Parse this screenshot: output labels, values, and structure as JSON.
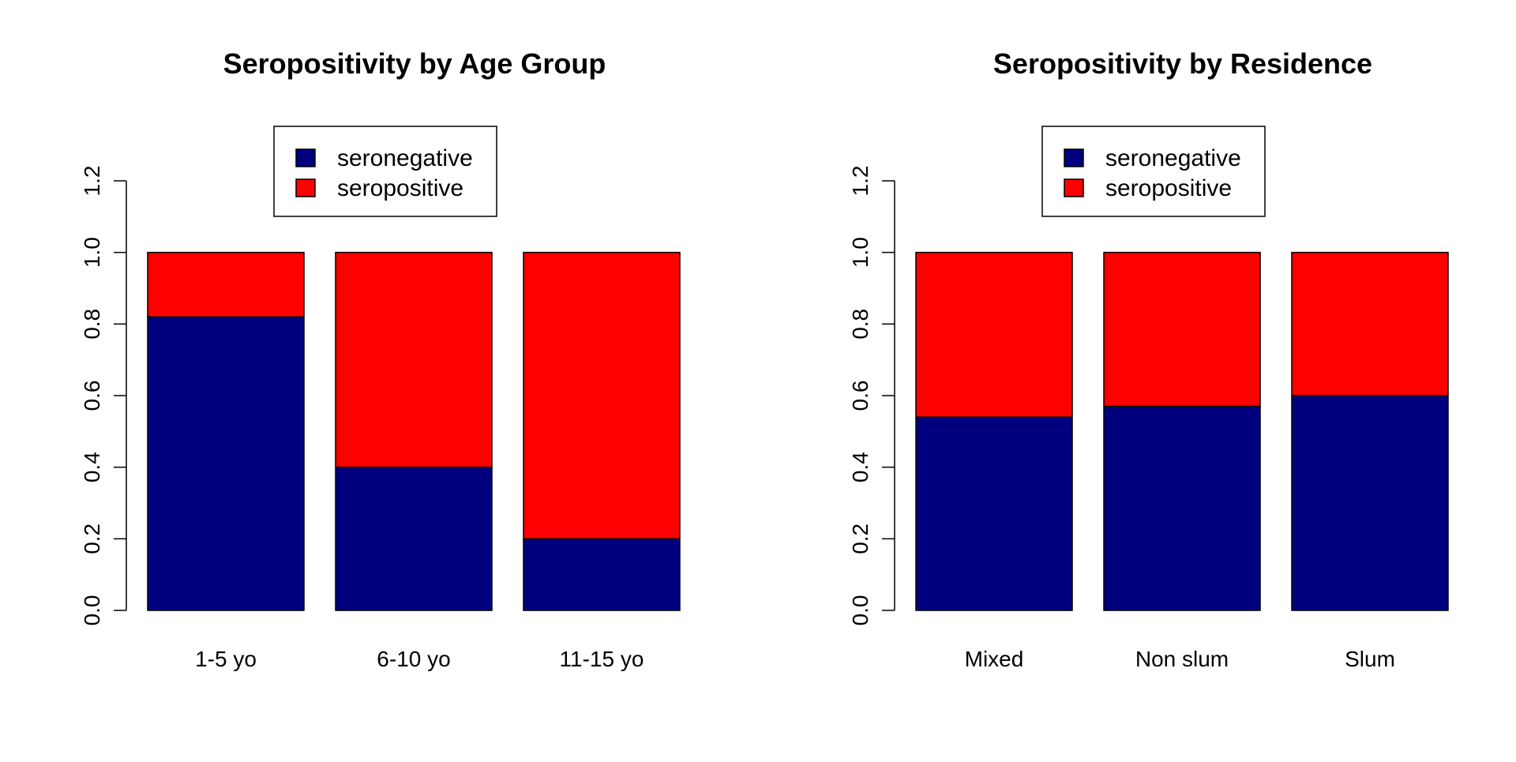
{
  "chart_data": [
    {
      "type": "bar",
      "stacked": true,
      "title": "Seropositivity by Age Group",
      "xlabel": "",
      "ylabel": "",
      "categories": [
        "1-5 yo",
        "6-10 yo",
        "11-15 yo"
      ],
      "series": [
        {
          "name": "seronegative",
          "values": [
            0.82,
            0.4,
            0.2
          ],
          "color": "#00007F"
        },
        {
          "name": "seropositive",
          "values": [
            0.18,
            0.6,
            0.8
          ],
          "color": "#FF0000"
        }
      ],
      "ylim": [
        0,
        1.2
      ],
      "yticks": [
        "0.0",
        "0.2",
        "0.4",
        "0.6",
        "0.8",
        "1.0",
        "1.2"
      ],
      "legend_position": "top-center",
      "grid": false
    },
    {
      "type": "bar",
      "stacked": true,
      "title": "Seropositivity by Residence",
      "xlabel": "",
      "ylabel": "",
      "categories": [
        "Mixed",
        "Non slum",
        "Slum"
      ],
      "series": [
        {
          "name": "seronegative",
          "values": [
            0.54,
            0.57,
            0.6
          ],
          "color": "#00007F"
        },
        {
          "name": "seropositive",
          "values": [
            0.46,
            0.43,
            0.4
          ],
          "color": "#FF0000"
        }
      ],
      "ylim": [
        0,
        1.2
      ],
      "yticks": [
        "0.0",
        "0.2",
        "0.4",
        "0.6",
        "0.8",
        "1.0",
        "1.2"
      ],
      "legend_position": "top-center",
      "grid": false
    }
  ]
}
